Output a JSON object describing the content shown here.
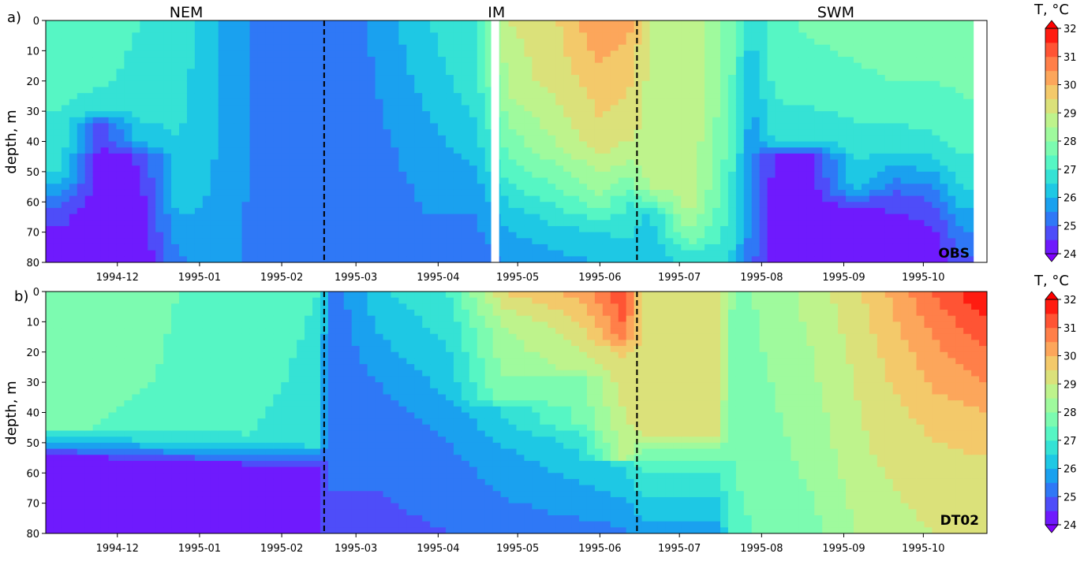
{
  "figure": {
    "colorbar": {
      "title": "T, °C",
      "range": [
        24,
        32
      ],
      "ticks": [
        "24",
        "25",
        "26",
        "27",
        "28",
        "29",
        "30",
        "31",
        "32"
      ],
      "colormap": [
        "#8000ff",
        "#4b52f9",
        "#1996f3",
        "#1fd3e0",
        "#52f5c6",
        "#8ffea6",
        "#c1f28a",
        "#f0d36e",
        "#ff9c57",
        "#ff5a37",
        "#ff0000"
      ],
      "extend": "both"
    }
  },
  "chart_data": [
    {
      "type": "heatmap",
      "panel_label": "a)",
      "corner_label": "OBS",
      "ylabel": "depth, m",
      "ylim": [
        80,
        0
      ],
      "yticks": [
        "0",
        "10",
        "20",
        "30",
        "40",
        "50",
        "60",
        "70",
        "80"
      ],
      "x_range": [
        "1994-11-04",
        "1995-10-25"
      ],
      "xticks": [
        "1994-12",
        "1995-01",
        "1995-02",
        "1995-03",
        "1995-04",
        "1995-05",
        "1995-06",
        "1995-07",
        "1995-08",
        "1995-09",
        "1995-10"
      ],
      "season_labels": [
        {
          "text": "NEM",
          "date": "1994-12-27"
        },
        {
          "text": "IM",
          "date": "1995-04-23"
        },
        {
          "text": "SWM",
          "date": "1995-08-29"
        }
      ],
      "season_boundaries": [
        "1995-02-17",
        "1995-06-15"
      ],
      "data_gaps": [
        [
          "1995-04-21",
          "1995-04-24"
        ],
        [
          "1995-10-20",
          "1995-10-25"
        ]
      ],
      "profiles": [
        {
          "date": "1994-11-10",
          "depth": [
            0,
            10,
            20,
            30,
            40,
            50,
            55,
            65,
            80
          ],
          "temp": [
            27.4,
            27.3,
            27.2,
            27.0,
            26.8,
            26.5,
            25.8,
            24.6,
            24.2
          ]
        },
        {
          "date": "1994-11-25",
          "depth": [
            0,
            10,
            20,
            30,
            34,
            45,
            80
          ],
          "temp": [
            27.3,
            27.2,
            27.1,
            26.6,
            24.8,
            24.2,
            24.0
          ]
        },
        {
          "date": "1994-12-10",
          "depth": [
            0,
            10,
            20,
            30,
            40,
            45,
            80
          ],
          "temp": [
            27.0,
            26.9,
            26.8,
            26.6,
            26.3,
            24.6,
            24.0
          ]
        },
        {
          "date": "1994-12-24",
          "depth": [
            0,
            20,
            40,
            60,
            70,
            80
          ],
          "temp": [
            26.8,
            26.7,
            26.5,
            26.2,
            25.8,
            25.4
          ]
        },
        {
          "date": "1995-01-05",
          "depth": [
            0,
            40,
            80
          ],
          "temp": [
            26.2,
            26.1,
            25.8
          ]
        },
        {
          "date": "1995-01-20",
          "depth": [
            0,
            40,
            80
          ],
          "temp": [
            25.5,
            25.5,
            25.4
          ]
        },
        {
          "date": "1995-02-05",
          "depth": [
            0,
            40,
            80
          ],
          "temp": [
            25.2,
            25.2,
            25.1
          ]
        },
        {
          "date": "1995-02-20",
          "depth": [
            0,
            40,
            80
          ],
          "temp": [
            25.0,
            25.0,
            25.0
          ]
        },
        {
          "date": "1995-03-10",
          "depth": [
            0,
            40,
            80
          ],
          "temp": [
            25.7,
            25.4,
            25.1
          ]
        },
        {
          "date": "1995-03-28",
          "depth": [
            0,
            20,
            40,
            80
          ],
          "temp": [
            26.5,
            26.2,
            25.8,
            25.3
          ]
        },
        {
          "date": "1995-04-15",
          "depth": [
            0,
            20,
            40,
            60,
            80
          ],
          "temp": [
            27.0,
            26.8,
            26.3,
            25.6,
            25.2
          ]
        },
        {
          "date": "1995-04-28",
          "depth": [
            0,
            20,
            35,
            50,
            65,
            80
          ],
          "temp": [
            29.0,
            28.7,
            28.0,
            27.3,
            26.2,
            25.6
          ]
        },
        {
          "date": "1995-05-15",
          "depth": [
            0,
            20,
            40,
            55,
            70,
            80
          ],
          "temp": [
            29.4,
            29.2,
            28.5,
            27.5,
            26.3,
            25.8
          ]
        },
        {
          "date": "1995-06-01",
          "depth": [
            0,
            20,
            40,
            60,
            70,
            80
          ],
          "temp": [
            30.5,
            29.8,
            29.3,
            27.8,
            26.5,
            26.0
          ]
        },
        {
          "date": "1995-06-12",
          "depth": [
            0,
            20,
            40,
            50,
            60,
            80
          ],
          "temp": [
            30.2,
            29.6,
            29.0,
            28.2,
            27.0,
            26.2
          ]
        },
        {
          "date": "1995-06-20",
          "depth": [
            0,
            40,
            55,
            65,
            80
          ],
          "temp": [
            28.9,
            28.8,
            28.6,
            26.4,
            26.0
          ]
        },
        {
          "date": "1995-07-05",
          "depth": [
            0,
            40,
            60,
            70,
            80
          ],
          "temp": [
            28.9,
            28.9,
            28.8,
            28.0,
            26.6
          ]
        },
        {
          "date": "1995-07-20",
          "depth": [
            0,
            30,
            50,
            70,
            80
          ],
          "temp": [
            27.8,
            27.6,
            27.2,
            26.8,
            26.5
          ]
        },
        {
          "date": "1995-07-28",
          "depth": [
            0,
            20,
            50,
            80
          ],
          "temp": [
            26.6,
            26.0,
            25.5,
            25.2
          ]
        },
        {
          "date": "1995-08-06",
          "depth": [
            0,
            20,
            40,
            45,
            80
          ],
          "temp": [
            27.4,
            27.2,
            26.6,
            24.4,
            24.0
          ]
        },
        {
          "date": "1995-08-20",
          "depth": [
            0,
            20,
            40,
            45,
            80
          ],
          "temp": [
            27.6,
            27.3,
            26.6,
            24.4,
            24.0
          ]
        },
        {
          "date": "1995-09-05",
          "depth": [
            0,
            20,
            40,
            55,
            62,
            80
          ],
          "temp": [
            27.7,
            27.4,
            26.8,
            26.2,
            24.5,
            24.0
          ]
        },
        {
          "date": "1995-09-20",
          "depth": [
            0,
            20,
            40,
            50,
            60,
            80
          ],
          "temp": [
            27.8,
            27.5,
            26.8,
            25.8,
            24.6,
            24.0
          ]
        },
        {
          "date": "1995-10-05",
          "depth": [
            0,
            20,
            40,
            48,
            55,
            65,
            80
          ],
          "temp": [
            27.8,
            27.5,
            26.9,
            26.2,
            25.5,
            24.6,
            24.0
          ]
        },
        {
          "date": "1995-10-15",
          "depth": [
            0,
            20,
            40,
            55,
            65,
            80
          ],
          "temp": [
            27.8,
            27.6,
            27.2,
            26.5,
            25.8,
            24.8
          ]
        }
      ]
    },
    {
      "type": "heatmap",
      "panel_label": "b)",
      "corner_label": "DT02",
      "ylabel": "depth, m",
      "ylim": [
        80,
        0
      ],
      "yticks": [
        "0",
        "10",
        "20",
        "30",
        "40",
        "50",
        "60",
        "70",
        "80"
      ],
      "x_range": [
        "1994-11-04",
        "1995-10-25"
      ],
      "xticks": [
        "1994-12",
        "1995-01",
        "1995-02",
        "1995-03",
        "1995-04",
        "1995-05",
        "1995-06",
        "1995-07",
        "1995-08",
        "1995-09",
        "1995-10"
      ],
      "season_boundaries": [
        "1995-02-17",
        "1995-06-15"
      ],
      "profiles": [
        {
          "date": "1994-11-10",
          "depth": [
            0,
            30,
            45,
            48,
            55,
            80
          ],
          "temp": [
            27.8,
            27.8,
            27.6,
            26.6,
            24.2,
            24.0
          ]
        },
        {
          "date": "1994-12-15",
          "depth": [
            0,
            30,
            45,
            50,
            57,
            80
          ],
          "temp": [
            27.6,
            27.5,
            27.3,
            26.4,
            24.2,
            24.0
          ]
        },
        {
          "date": "1995-01-20",
          "depth": [
            0,
            30,
            48,
            52,
            58,
            80
          ],
          "temp": [
            27.2,
            27.1,
            27.0,
            26.2,
            24.2,
            24.0
          ]
        },
        {
          "date": "1995-02-15",
          "depth": [
            0,
            30,
            50,
            53,
            59,
            80
          ],
          "temp": [
            27.0,
            26.9,
            26.8,
            26.0,
            24.2,
            24.0
          ]
        },
        {
          "date": "1995-02-19",
          "depth": [
            0,
            40,
            80
          ],
          "temp": [
            25.1,
            25.0,
            25.0
          ]
        },
        {
          "date": "1995-03-10",
          "depth": [
            0,
            15,
            30,
            50,
            80
          ],
          "temp": [
            26.4,
            26.0,
            25.5,
            25.1,
            24.9
          ]
        },
        {
          "date": "1995-04-05",
          "depth": [
            0,
            15,
            30,
            45,
            70,
            80
          ],
          "temp": [
            27.0,
            26.6,
            26.2,
            25.6,
            25.1,
            25.0
          ]
        },
        {
          "date": "1995-04-25",
          "depth": [
            0,
            10,
            36,
            38,
            55,
            80
          ],
          "temp": [
            29.5,
            28.5,
            27.8,
            26.6,
            25.8,
            25.2
          ]
        },
        {
          "date": "1995-05-25",
          "depth": [
            0,
            10,
            26,
            28,
            44,
            48,
            65,
            80
          ],
          "temp": [
            30.3,
            29.5,
            28.6,
            27.9,
            27.6,
            26.8,
            25.9,
            25.3
          ]
        },
        {
          "date": "1995-06-10",
          "depth": [
            0,
            15,
            20,
            40,
            55,
            57,
            70,
            80
          ],
          "temp": [
            31.5,
            30.8,
            29.6,
            29.0,
            28.8,
            26.6,
            25.9,
            25.4
          ]
        },
        {
          "date": "1995-06-17",
          "depth": [
            0,
            30,
            48,
            52,
            60,
            75,
            80
          ],
          "temp": [
            29.4,
            29.3,
            29.0,
            28.0,
            27.0,
            26.0,
            25.8
          ]
        },
        {
          "date": "1995-07-15",
          "depth": [
            0,
            30,
            48,
            52,
            60,
            75,
            80
          ],
          "temp": [
            29.2,
            29.2,
            29.0,
            28.0,
            27.0,
            26.0,
            25.8
          ]
        },
        {
          "date": "1995-07-22",
          "depth": [
            0,
            40,
            80
          ],
          "temp": [
            27.8,
            27.6,
            27.4
          ]
        },
        {
          "date": "1995-08-20",
          "depth": [
            0,
            30,
            60,
            80
          ],
          "temp": [
            28.7,
            28.4,
            28.1,
            27.8
          ]
        },
        {
          "date": "1995-09-10",
          "depth": [
            0,
            20,
            40,
            60,
            80
          ],
          "temp": [
            29.6,
            29.3,
            29.1,
            28.9,
            28.7
          ]
        },
        {
          "date": "1995-10-05",
          "depth": [
            0,
            15,
            30,
            45,
            60,
            80
          ],
          "temp": [
            31.0,
            30.5,
            30.1,
            29.6,
            29.3,
            29.0
          ]
        },
        {
          "date": "1995-10-24",
          "depth": [
            0,
            15,
            30,
            45,
            60,
            80
          ],
          "temp": [
            32.0,
            31.2,
            30.5,
            29.7,
            29.4,
            29.1
          ]
        }
      ]
    }
  ]
}
